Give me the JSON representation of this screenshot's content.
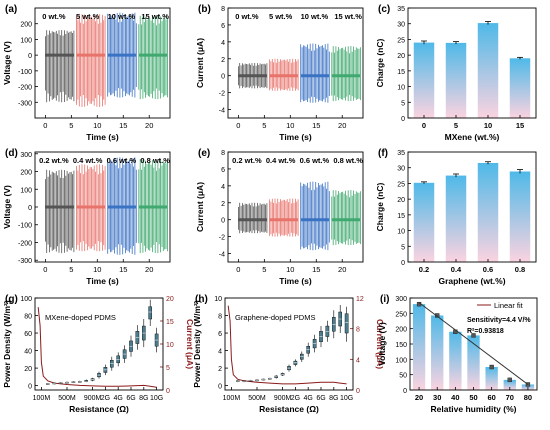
{
  "panels": [
    {
      "id": "a",
      "label": "(a)",
      "type": "signal",
      "ylabel": "Voltage (V)",
      "xlabel": "Time (s)",
      "ylim": [
        -400,
        300
      ],
      "yticks": [
        -300,
        -200,
        -100,
        0,
        100,
        200
      ],
      "xlim": [
        -2,
        24
      ],
      "xticks": [
        0,
        5,
        10,
        15,
        20
      ],
      "segments": [
        {
          "label": "0 wt.%",
          "x": [
            0,
            5.5
          ],
          "pos": 160,
          "neg": -300,
          "color": "#555555"
        },
        {
          "label": "5 wt.%",
          "x": [
            6,
            11.5
          ],
          "pos": 260,
          "neg": -330,
          "color": "#e8736b"
        },
        {
          "label": "10 wt.%",
          "x": [
            12,
            17.5
          ],
          "pos": 270,
          "neg": -270,
          "color": "#3a72c4"
        },
        {
          "label": "15 wt.%",
          "x": [
            18,
            23.5
          ],
          "pos": 250,
          "neg": -280,
          "color": "#3fa96f"
        }
      ]
    },
    {
      "id": "b",
      "label": "(b)",
      "type": "signal",
      "ylabel": "Current (μA)",
      "xlabel": "Time (s)",
      "ylim": [
        -5,
        8
      ],
      "yticks": [
        -4,
        -2,
        0,
        2,
        4,
        6,
        8
      ],
      "xlim": [
        -2,
        24
      ],
      "xticks": [
        0,
        5,
        10,
        15,
        20
      ],
      "segments": [
        {
          "label": "0 wt.%",
          "x": [
            0,
            5.5
          ],
          "pos": 1.5,
          "neg": -1.5,
          "color": "#555555"
        },
        {
          "label": "5 wt.%",
          "x": [
            6,
            11.5
          ],
          "pos": 2.0,
          "neg": -1.8,
          "color": "#e8736b"
        },
        {
          "label": "10 wt.%",
          "x": [
            12,
            17.5
          ],
          "pos": 3.8,
          "neg": -3.2,
          "color": "#3a72c4"
        },
        {
          "label": "15 wt.%",
          "x": [
            18,
            23.5
          ],
          "pos": 3.5,
          "neg": -3.0,
          "color": "#3fa96f"
        }
      ]
    },
    {
      "id": "c",
      "label": "(c)",
      "type": "bar",
      "ylabel": "Charge (nC)",
      "xlabel": "MXene (wt.%)",
      "categories": [
        "0",
        "5",
        "10",
        "15"
      ],
      "values": [
        24.0,
        23.9,
        30.2,
        19.0
      ],
      "errors": [
        0.5,
        0.4,
        0.5,
        0.3
      ],
      "ylim": [
        0,
        35
      ],
      "yticks": [
        0,
        5,
        10,
        15,
        20,
        25,
        30,
        35
      ]
    },
    {
      "id": "d",
      "label": "(d)",
      "type": "signal",
      "ylabel": "Voltage (V)",
      "xlabel": "Time (s)",
      "ylim": [
        -310,
        310
      ],
      "yticks": [
        -300,
        -200,
        -100,
        0,
        100,
        200,
        300
      ],
      "xlim": [
        -2,
        24
      ],
      "xticks": [
        0,
        5,
        10,
        15,
        20
      ],
      "segments": [
        {
          "label": "0.2 wt.%",
          "x": [
            0,
            5.5
          ],
          "pos": 210,
          "neg": -260,
          "color": "#555555"
        },
        {
          "label": "0.4 wt.%",
          "x": [
            6,
            11.5
          ],
          "pos": 240,
          "neg": -250,
          "color": "#e8736b"
        },
        {
          "label": "0.6 wt.%",
          "x": [
            12,
            17.5
          ],
          "pos": 280,
          "neg": -270,
          "color": "#3a72c4"
        },
        {
          "label": "0.8 wt.%",
          "x": [
            18,
            23.5
          ],
          "pos": 270,
          "neg": -260,
          "color": "#3fa96f"
        }
      ]
    },
    {
      "id": "e",
      "label": "(e)",
      "type": "signal",
      "ylabel": "Current (μA)",
      "xlabel": "Time (s)",
      "ylim": [
        -5,
        8
      ],
      "yticks": [
        -4,
        -2,
        0,
        2,
        4,
        6,
        8
      ],
      "xlim": [
        -2,
        24
      ],
      "xticks": [
        0,
        5,
        10,
        15,
        20
      ],
      "segments": [
        {
          "label": "0.2 wt.%",
          "x": [
            0,
            5.5
          ],
          "pos": 2.0,
          "neg": -1.6,
          "color": "#555555"
        },
        {
          "label": "0.4 wt.%",
          "x": [
            6,
            11.5
          ],
          "pos": 2.5,
          "neg": -2.0,
          "color": "#e8736b"
        },
        {
          "label": "0.6 wt.%",
          "x": [
            12,
            17.5
          ],
          "pos": 4.5,
          "neg": -3.6,
          "color": "#3a72c4"
        },
        {
          "label": "0.8 wt.%",
          "x": [
            18,
            23.5
          ],
          "pos": 3.5,
          "neg": -3.0,
          "color": "#3fa96f"
        }
      ]
    },
    {
      "id": "f",
      "label": "(f)",
      "type": "bar",
      "ylabel": "Charge (nC)",
      "xlabel": "Graphene (wt.%)",
      "categories": [
        "0.2",
        "0.4",
        "0.6",
        "0.8"
      ],
      "values": [
        25.2,
        27.5,
        31.5,
        28.8
      ],
      "errors": [
        0.3,
        0.5,
        0.4,
        0.6
      ],
      "ylim": [
        0,
        35
      ],
      "yticks": [
        0,
        5,
        10,
        15,
        20,
        25,
        30,
        35
      ]
    },
    {
      "id": "g",
      "label": "(g)",
      "type": "power",
      "annotation": "MXene-doped PDMS",
      "ylabel": "Power Density (W/m²)",
      "y2label": "Current (μA)",
      "xlabel": "Resistance (Ω)",
      "xtick_labels": [
        "100M",
        "500M",
        "900M",
        "2G",
        "4G",
        "6G",
        "8G",
        "10G"
      ],
      "xtick_pos": [
        0,
        4,
        8,
        10,
        12,
        14,
        16,
        18
      ],
      "xlim": [
        -1,
        19
      ],
      "ylim": [
        -5,
        100
      ],
      "yticks": [
        0,
        20,
        40,
        60,
        80,
        100
      ],
      "y2lim": [
        0,
        20
      ],
      "y2ticks": [
        0,
        5,
        10,
        15,
        20
      ],
      "boxes": [
        {
          "x": 1,
          "med": 2,
          "q1": 1.5,
          "q3": 2.5,
          "lo": 1,
          "hi": 3
        },
        {
          "x": 2,
          "med": 2.5,
          "q1": 2,
          "q3": 3,
          "lo": 1.5,
          "hi": 3.5
        },
        {
          "x": 3,
          "med": 3,
          "q1": 2.5,
          "q3": 3.5,
          "lo": 2,
          "hi": 4
        },
        {
          "x": 4,
          "med": 3.5,
          "q1": 3,
          "q3": 4,
          "lo": 2.5,
          "hi": 4.5
        },
        {
          "x": 5,
          "med": 4,
          "q1": 3.5,
          "q3": 4.5,
          "lo": 3,
          "hi": 5
        },
        {
          "x": 6,
          "med": 4.5,
          "q1": 4,
          "q3": 5,
          "lo": 3.5,
          "hi": 5.5
        },
        {
          "x": 7,
          "med": 5,
          "q1": 4.5,
          "q3": 6,
          "lo": 4,
          "hi": 7
        },
        {
          "x": 8,
          "med": 7,
          "q1": 6,
          "q3": 8,
          "lo": 5,
          "hi": 9
        },
        {
          "x": 9,
          "med": 12,
          "q1": 10,
          "q3": 14,
          "lo": 8,
          "hi": 16
        },
        {
          "x": 10,
          "med": 18,
          "q1": 15,
          "q3": 21,
          "lo": 12,
          "hi": 24
        },
        {
          "x": 11,
          "med": 25,
          "q1": 21,
          "q3": 29,
          "lo": 17,
          "hi": 33
        },
        {
          "x": 12,
          "med": 30,
          "q1": 26,
          "q3": 34,
          "lo": 22,
          "hi": 38
        },
        {
          "x": 13,
          "med": 36,
          "q1": 31,
          "q3": 41,
          "lo": 26,
          "hi": 46
        },
        {
          "x": 14,
          "med": 45,
          "q1": 39,
          "q3": 51,
          "lo": 33,
          "hi": 57
        },
        {
          "x": 15,
          "med": 55,
          "q1": 48,
          "q3": 62,
          "lo": 41,
          "hi": 69
        },
        {
          "x": 16,
          "med": 60,
          "q1": 52,
          "q3": 68,
          "lo": 44,
          "hi": 76
        },
        {
          "x": 17,
          "med": 84,
          "q1": 76,
          "q3": 90,
          "lo": 68,
          "hi": 98
        },
        {
          "x": 18,
          "med": 52,
          "q1": 45,
          "q3": 59,
          "lo": 38,
          "hi": 66
        }
      ],
      "current_x": [
        -0.5,
        -0.2,
        0,
        0.3,
        1,
        2,
        4,
        6,
        8,
        10,
        12,
        14,
        16,
        17,
        18
      ],
      "current_y": [
        18,
        14,
        6,
        3,
        2,
        1.5,
        1.2,
        1.0,
        0.9,
        0.8,
        0.8,
        0.9,
        1.0,
        0.8,
        0.6
      ]
    },
    {
      "id": "h",
      "label": "(h)",
      "type": "power",
      "annotation": "Graphene-doped PDMS",
      "ylabel": "Power Density (W/m²)",
      "y2label": "Current (μA)",
      "xlabel": "Resistance (Ω)",
      "xtick_labels": [
        "100M",
        "500M",
        "900M",
        "2G",
        "4G",
        "6G",
        "8G",
        "10G"
      ],
      "xtick_pos": [
        0,
        4,
        8,
        10,
        12,
        14,
        16,
        18
      ],
      "xlim": [
        -1,
        19
      ],
      "ylim": [
        -0.5,
        10
      ],
      "yticks": [
        0,
        2,
        4,
        6,
        8,
        10
      ],
      "y2lim": [
        0,
        12
      ],
      "y2ticks": [
        0,
        4,
        8,
        12
      ],
      "boxes": [
        {
          "x": 1,
          "med": 0.5,
          "q1": 0.45,
          "q3": 0.55,
          "lo": 0.4,
          "hi": 0.6
        },
        {
          "x": 2,
          "med": 0.5,
          "q1": 0.45,
          "q3": 0.55,
          "lo": 0.4,
          "hi": 0.6
        },
        {
          "x": 3,
          "med": 0.55,
          "q1": 0.5,
          "q3": 0.6,
          "lo": 0.45,
          "hi": 0.65
        },
        {
          "x": 4,
          "med": 0.6,
          "q1": 0.55,
          "q3": 0.65,
          "lo": 0.5,
          "hi": 0.7
        },
        {
          "x": 5,
          "med": 0.7,
          "q1": 0.65,
          "q3": 0.75,
          "lo": 0.6,
          "hi": 0.8
        },
        {
          "x": 6,
          "med": 0.8,
          "q1": 0.75,
          "q3": 0.85,
          "lo": 0.7,
          "hi": 0.9
        },
        {
          "x": 7,
          "med": 1.0,
          "q1": 0.9,
          "q3": 1.1,
          "lo": 0.8,
          "hi": 1.2
        },
        {
          "x": 8,
          "med": 1.3,
          "q1": 1.2,
          "q3": 1.4,
          "lo": 1.1,
          "hi": 1.5
        },
        {
          "x": 9,
          "med": 2.0,
          "q1": 1.8,
          "q3": 2.2,
          "lo": 1.6,
          "hi": 2.4
        },
        {
          "x": 10,
          "med": 2.6,
          "q1": 2.4,
          "q3": 2.8,
          "lo": 2.2,
          "hi": 3.0
        },
        {
          "x": 11,
          "med": 3.3,
          "q1": 3.0,
          "q3": 3.6,
          "lo": 2.7,
          "hi": 3.9
        },
        {
          "x": 12,
          "med": 4.1,
          "q1": 3.7,
          "q3": 4.5,
          "lo": 3.3,
          "hi": 4.9
        },
        {
          "x": 13,
          "med": 4.8,
          "q1": 4.3,
          "q3": 5.3,
          "lo": 3.8,
          "hi": 5.8
        },
        {
          "x": 14,
          "med": 5.6,
          "q1": 5.0,
          "q3": 6.2,
          "lo": 4.4,
          "hi": 6.8
        },
        {
          "x": 15,
          "med": 6.2,
          "q1": 5.6,
          "q3": 6.8,
          "lo": 5.0,
          "hi": 7.4
        },
        {
          "x": 16,
          "med": 7.0,
          "q1": 6.2,
          "q3": 7.8,
          "lo": 5.4,
          "hi": 8.6
        },
        {
          "x": 17,
          "med": 7.6,
          "q1": 6.8,
          "q3": 8.4,
          "lo": 6.0,
          "hi": 9.2
        },
        {
          "x": 18,
          "med": 7.2,
          "q1": 6.0,
          "q3": 8.2,
          "lo": 5.0,
          "hi": 9.0
        }
      ],
      "current_x": [
        -0.5,
        -0.2,
        0,
        0.3,
        1,
        2,
        4,
        6,
        8,
        10,
        12,
        14,
        16,
        17,
        18
      ],
      "current_y": [
        11,
        9,
        4,
        2,
        1.4,
        1.2,
        1.0,
        0.9,
        0.8,
        0.8,
        0.9,
        1.0,
        1.0,
        0.9,
        0.8
      ]
    },
    {
      "id": "i",
      "label": "(i)",
      "type": "humidity",
      "ylabel": "Voltage (V)",
      "xlabel": "Relative humidity (%)",
      "categories": [
        "20",
        "30",
        "40",
        "50",
        "60",
        "70",
        "80"
      ],
      "values": [
        280,
        243,
        190,
        178,
        75,
        33,
        18
      ],
      "errors": [
        4,
        4,
        4,
        4,
        4,
        4,
        4
      ],
      "ylim": [
        0,
        300
      ],
      "yticks": [
        0,
        50,
        100,
        150,
        200,
        250,
        300
      ],
      "fit": {
        "x0": "20",
        "y0": 285,
        "x1": "80",
        "y1": 18
      },
      "legend_label": "Linear fit",
      "sensitivity": "Sensitivity=4.4 V/%",
      "r2": "R²=0.93818"
    }
  ],
  "colors": {
    "bar_top": "#4fb9e8",
    "bar_bottom": "#fbd3e0",
    "box": "#4a7d8f",
    "current_line": "#8b1a1a",
    "fit_line": "#333333"
  }
}
